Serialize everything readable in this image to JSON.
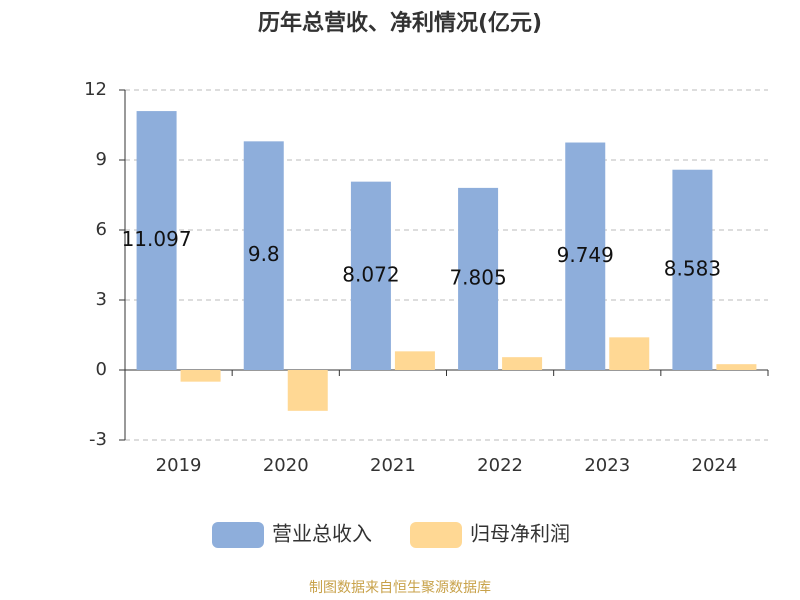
{
  "chart_data": {
    "type": "bar",
    "title": "历年总营收、净利情况(亿元)",
    "categories": [
      "2019",
      "2020",
      "2021",
      "2022",
      "2023",
      "2024"
    ],
    "series": [
      {
        "name": "营业总收入",
        "color": "#8eaedb",
        "values": [
          11.097,
          9.8,
          8.072,
          7.805,
          9.749,
          8.583
        ]
      },
      {
        "name": "归母净利润",
        "color": "#ffd894",
        "values": [
          -0.5,
          -1.75,
          0.8,
          0.55,
          1.4,
          0.25
        ]
      }
    ],
    "ylim": [
      -3,
      12
    ],
    "yticks": [
      -3,
      0,
      3,
      6,
      9,
      12
    ],
    "grid": true,
    "source": "制图数据来自恒生聚源数据库"
  }
}
